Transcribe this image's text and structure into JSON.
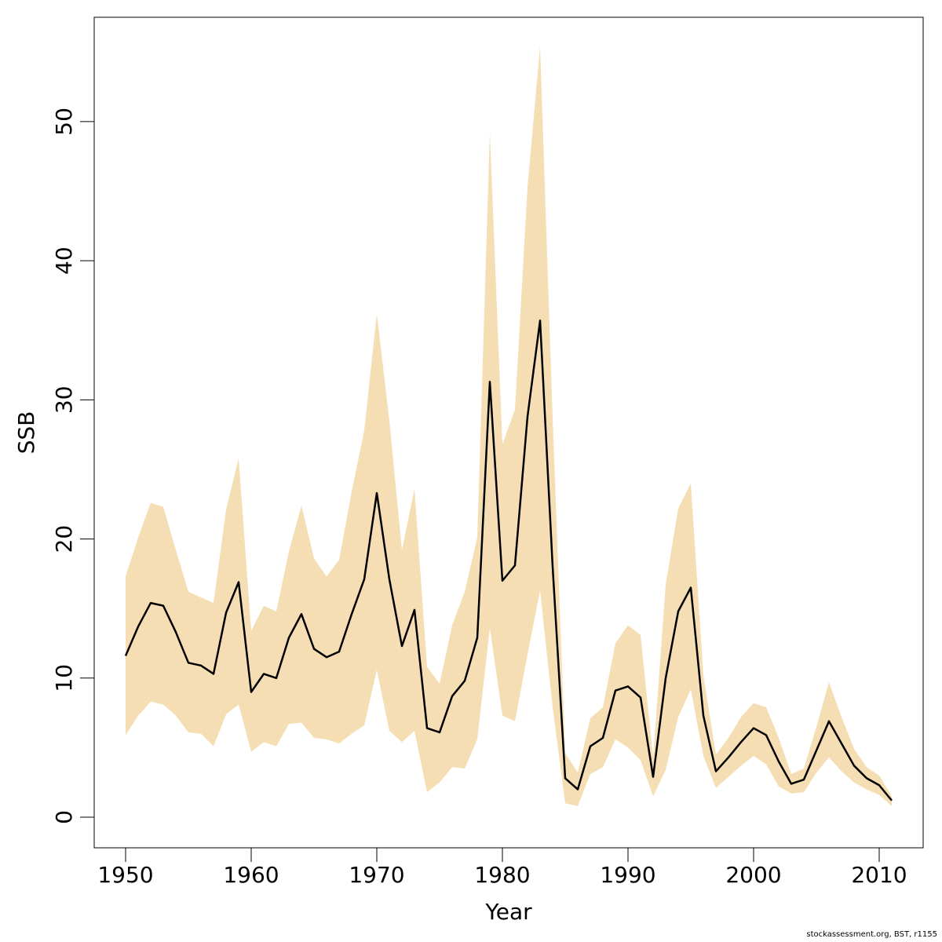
{
  "chart_data": {
    "type": "area",
    "title": "",
    "xlabel": "Year",
    "ylabel": "SSB",
    "xlim": [
      1947.5,
      2013.5
    ],
    "ylim": [
      -2.2,
      57.5
    ],
    "x_ticks": [
      1950,
      1960,
      1970,
      1980,
      1990,
      2000,
      2010
    ],
    "y_ticks": [
      0,
      10,
      20,
      30,
      40,
      50
    ],
    "grid": false,
    "band_color": "#F5DEB3",
    "line_color": "#000000",
    "x": [
      1950,
      1951,
      1952,
      1953,
      1954,
      1955,
      1956,
      1957,
      1958,
      1959,
      1960,
      1961,
      1962,
      1963,
      1964,
      1965,
      1966,
      1967,
      1968,
      1969,
      1970,
      1971,
      1972,
      1973,
      1974,
      1975,
      1976,
      1977,
      1978,
      1979,
      1980,
      1981,
      1982,
      1983,
      1984,
      1985,
      1986,
      1987,
      1988,
      1989,
      1990,
      1991,
      1992,
      1993,
      1994,
      1995,
      1996,
      1997,
      1998,
      1999,
      2000,
      2001,
      2002,
      2003,
      2004,
      2005,
      2006,
      2007,
      2008,
      2009,
      2010,
      2011
    ],
    "series": [
      {
        "values": [
          11.6,
          13.7,
          15.4,
          15.2,
          13.3,
          11.1,
          10.9,
          10.3,
          14.7,
          16.9,
          9.0,
          10.3,
          10.0,
          12.9,
          14.6,
          12.1,
          11.5,
          11.9,
          14.6,
          17.1,
          23.3,
          17.1,
          12.3,
          14.9,
          6.4,
          6.1,
          8.7,
          9.8,
          12.9,
          31.3,
          17.0,
          18.1,
          28.8,
          35.7,
          18.0,
          2.8,
          2.0,
          5.1,
          5.7,
          9.1,
          9.4,
          8.6,
          2.9,
          10.0,
          14.8,
          16.5,
          7.3,
          3.3,
          4.3,
          5.4,
          6.4,
          5.9,
          4.0,
          2.4,
          2.7,
          4.8,
          6.9,
          5.3,
          3.7,
          2.8,
          2.3,
          1.2
        ]
      },
      {
        "lower": [
          5.9,
          7.3,
          8.3,
          8.1,
          7.3,
          6.1,
          6.0,
          5.1,
          7.4,
          8.1,
          4.7,
          5.4,
          5.1,
          6.7,
          6.8,
          5.7,
          5.6,
          5.3,
          6.0,
          6.6,
          10.6,
          6.2,
          5.4,
          6.2,
          1.8,
          2.5,
          3.6,
          3.5,
          5.6,
          13.6,
          7.3,
          6.9,
          11.7,
          16.3,
          7.9,
          1.0,
          0.8,
          3.1,
          3.6,
          5.6,
          5.0,
          4.1,
          1.5,
          3.4,
          7.2,
          9.2,
          4.4,
          2.1,
          2.9,
          3.7,
          4.4,
          3.8,
          2.2,
          1.7,
          1.8,
          3.2,
          4.3,
          3.3,
          2.5,
          2.0,
          1.6,
          0.8
        ],
        "upper": [
          17.3,
          20.1,
          22.6,
          22.3,
          19.2,
          16.2,
          15.8,
          15.4,
          22.1,
          25.8,
          13.4,
          15.2,
          14.8,
          19.1,
          22.4,
          18.6,
          17.3,
          18.5,
          23.4,
          27.8,
          36.2,
          28.5,
          19.2,
          23.6,
          10.8,
          9.6,
          13.8,
          16.2,
          20.1,
          49.2,
          26.8,
          29.3,
          45.3,
          55.4,
          28.7,
          4.6,
          3.2,
          7.1,
          7.9,
          12.5,
          13.8,
          13.1,
          4.3,
          16.7,
          22.2,
          24.0,
          10.2,
          4.5,
          5.7,
          7.2,
          8.2,
          7.9,
          5.7,
          3.1,
          3.5,
          6.5,
          9.7,
          7.2,
          4.9,
          3.6,
          3.0,
          1.5
        ]
      }
    ]
  },
  "credit": "stockassessment.org, BST, r1155"
}
